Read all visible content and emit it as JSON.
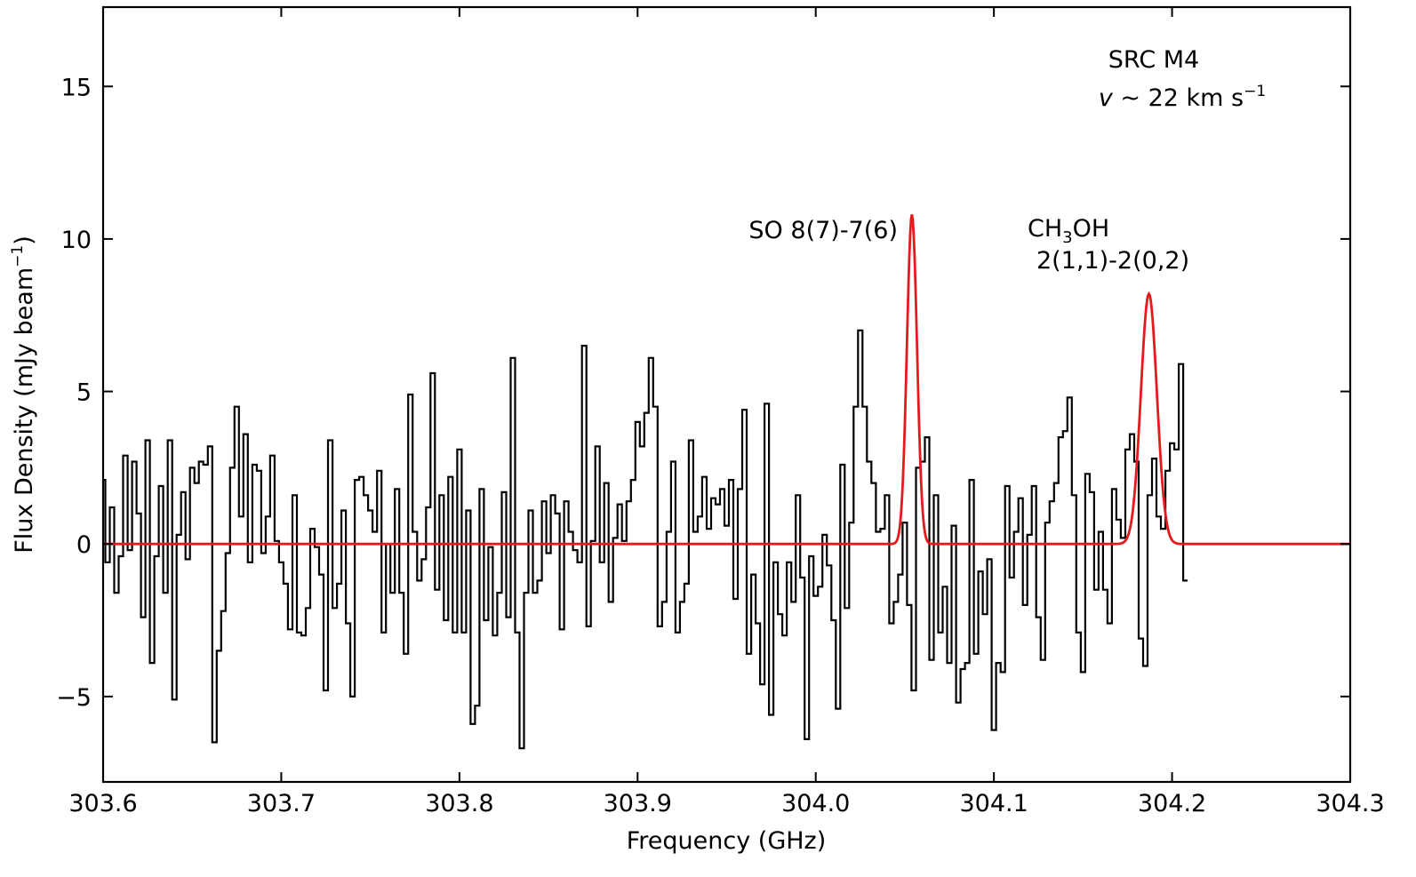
{
  "chart_data": {
    "type": "line",
    "xlabel": "Frequency (GHz)",
    "ylabel": {
      "text": "Flux Density (mJy beam",
      "sup": "−1",
      "close": ")"
    },
    "xlim": [
      303.6,
      304.3
    ],
    "ylim": [
      -7.8,
      17.6
    ],
    "xticks": [
      303.6,
      303.7,
      303.8,
      303.9,
      304.0,
      304.1,
      304.2,
      304.3
    ],
    "xtick_labels": [
      "303.6",
      "303.7",
      "303.8",
      "303.9",
      "304.0",
      "304.1",
      "304.2",
      "304.3"
    ],
    "yticks": [
      -5,
      0,
      5,
      10,
      15
    ],
    "ytick_labels": [
      "−5",
      "0",
      "5",
      "10",
      "15"
    ],
    "grid": false,
    "annotations": {
      "source": "SRC M4",
      "velocity": {
        "symbol": "v",
        "text": " ~ 22 km s",
        "sup": "−1"
      },
      "so_line": "SO 8(7)-7(6)",
      "ch3oh": {
        "pre": "CH",
        "sub": "3",
        "post": "OH"
      },
      "ch3oh_transition": "2(1,1)-2(0,2)"
    },
    "series": [
      {
        "style": "steps-mid",
        "color": "#000000",
        "x_start": 303.6,
        "x_step": 0.0025,
        "y": [
          2.1,
          -0.6,
          1.2,
          -1.6,
          -0.4,
          2.9,
          -0.2,
          2.7,
          1.0,
          -2.4,
          3.4,
          -3.9,
          -0.4,
          1.9,
          -1.6,
          3.4,
          -5.1,
          0.3,
          1.7,
          -0.5,
          2.5,
          2.0,
          2.7,
          2.6,
          3.2,
          -6.5,
          -3.5,
          -2.2,
          -0.3,
          2.5,
          4.5,
          0.9,
          3.6,
          -0.6,
          2.6,
          2.4,
          -0.3,
          0.9,
          2.9,
          0.1,
          -0.6,
          -1.3,
          -2.8,
          1.6,
          -2.9,
          -3.0,
          -2.1,
          0.5,
          -0.1,
          -1.0,
          -4.8,
          3.4,
          -2.1,
          -1.3,
          1.1,
          -2.6,
          -5.0,
          2.1,
          2.2,
          1.6,
          1.1,
          0.4,
          2.4,
          -2.9,
          0.0,
          -1.6,
          1.8,
          -1.6,
          -3.6,
          4.9,
          0.4,
          -1.2,
          -0.5,
          1.2,
          5.6,
          -1.5,
          1.6,
          -2.5,
          2.2,
          -2.9,
          3.1,
          -2.9,
          1.1,
          -5.9,
          -5.3,
          1.8,
          -2.5,
          -0.1,
          -3.0,
          -1.6,
          1.7,
          -2.4,
          6.1,
          -2.9,
          -6.7,
          -1.6,
          1.1,
          -1.6,
          -1.2,
          1.4,
          -0.3,
          1.6,
          1.0,
          -2.8,
          1.4,
          0.4,
          -0.2,
          -0.6,
          6.5,
          -2.7,
          0.1,
          3.2,
          -0.6,
          2.0,
          -1.9,
          0.2,
          1.3,
          0.1,
          1.4,
          2.1,
          4.0,
          3.2,
          4.3,
          6.1,
          4.5,
          -2.7,
          -1.9,
          0.4,
          2.7,
          -2.9,
          -1.9,
          -1.3,
          3.4,
          0.4,
          0.9,
          2.2,
          0.5,
          1.5,
          1.3,
          1.8,
          0.6,
          2.1,
          -1.8,
          1.8,
          4.4,
          -3.6,
          -1.0,
          -2.6,
          -4.6,
          4.6,
          -5.6,
          -0.6,
          -2.3,
          -3.0,
          -0.6,
          -1.9,
          1.6,
          -1.1,
          -6.4,
          -0.4,
          -1.7,
          -1.4,
          0.3,
          -0.7,
          -2.5,
          -5.4,
          2.6,
          -2.1,
          0.7,
          4.5,
          7.0,
          4.5,
          2.7,
          2.0,
          0.4,
          0.5,
          1.6,
          -2.6,
          -1.9,
          -1.0,
          0.7,
          -2.0,
          -4.8,
          2.5,
          2.7,
          3.5,
          -3.8,
          1.6,
          -2.9,
          -1.4,
          -3.9,
          0.6,
          -5.2,
          -4.1,
          -3.9,
          2.1,
          -3.6,
          -0.9,
          -2.3,
          -0.5,
          -6.1,
          -3.9,
          -4.2,
          1.9,
          -1.1,
          0.4,
          1.5,
          -2.0,
          0.3,
          1.9,
          -2.4,
          -3.8,
          0.7,
          1.4,
          2.0,
          3.5,
          3.7,
          4.8,
          1.6,
          -2.9,
          -4.2,
          2.3,
          1.7,
          -1.5,
          0.4,
          -1.5,
          -2.6,
          1.8,
          0.8,
          0.2,
          3.1,
          3.6,
          2.7,
          -3.1,
          -4.0,
          1.6,
          2.8,
          0.9,
          0.5,
          2.4,
          3.3,
          3.1,
          5.9,
          -1.2
        ]
      },
      {
        "style": "line",
        "color": "#e41a1c",
        "model": "gaussian",
        "peaks": [
          {
            "center": 304.054,
            "amplitude": 10.8,
            "sigma": 0.0028
          },
          {
            "center": 304.187,
            "amplitude": 8.2,
            "sigma": 0.0045
          }
        ]
      }
    ]
  }
}
